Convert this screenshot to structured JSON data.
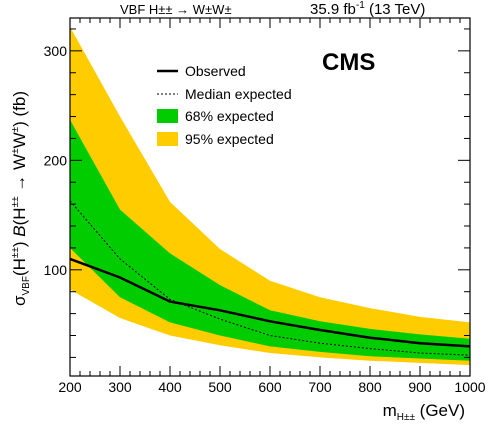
{
  "header": {
    "left": "VBF H±± → W±W±",
    "lumi": "35.9 fb",
    "lumi_exp": "-1",
    "energy": " (13 TeV)"
  },
  "colors": {
    "band95": "#FFCC00",
    "band68": "#00CC00",
    "observed": "#000000",
    "expected": "#000000"
  },
  "chart_data": {
    "type": "line",
    "experiment_label": "CMS",
    "xlabel": "m",
    "xlabel_sub": "H±±",
    "xlabel_unit": " (GeV)",
    "ylabel_parts": {
      "sigma": "σ",
      "sigma_sub": "VBF",
      "higgs": "(H",
      "higgs_sup": "±±",
      "close": ")",
      "B": "B",
      "br_open": "(H",
      "br_sup": "±±",
      "arrow": " → W",
      "w1_sup": "±",
      "w2": "W",
      "w2_sup": "±",
      "unit": ") (fb)"
    },
    "xlim": [
      200,
      1000
    ],
    "ylim": [
      3,
      330
    ],
    "xticks": [
      200,
      300,
      400,
      500,
      600,
      700,
      800,
      900,
      1000
    ],
    "yticks": [
      100,
      200,
      300
    ],
    "x": [
      200,
      300,
      400,
      500,
      600,
      700,
      800,
      900,
      1000
    ],
    "series": [
      {
        "name": "Observed",
        "style": "solid",
        "values": [
          110,
          93,
          71,
          63,
          53,
          45,
          38,
          33,
          30
        ]
      },
      {
        "name": "Median expected",
        "style": "dashed",
        "values": [
          163,
          110,
          73,
          55,
          40,
          33,
          28,
          24,
          22
        ]
      },
      {
        "name": "68% expected",
        "style": "band",
        "lower": [
          120,
          75,
          52,
          40,
          30,
          25,
          21,
          19,
          17
        ],
        "upper": [
          237,
          155,
          115,
          86,
          63,
          53,
          46,
          41,
          37
        ]
      },
      {
        "name": "95% expected",
        "style": "band",
        "lower": [
          82,
          56,
          40,
          31,
          24,
          20,
          17,
          15,
          13
        ],
        "upper": [
          322,
          240,
          162,
          119,
          90,
          75,
          65,
          57,
          52
        ]
      }
    ],
    "legend_position": "top-center"
  }
}
